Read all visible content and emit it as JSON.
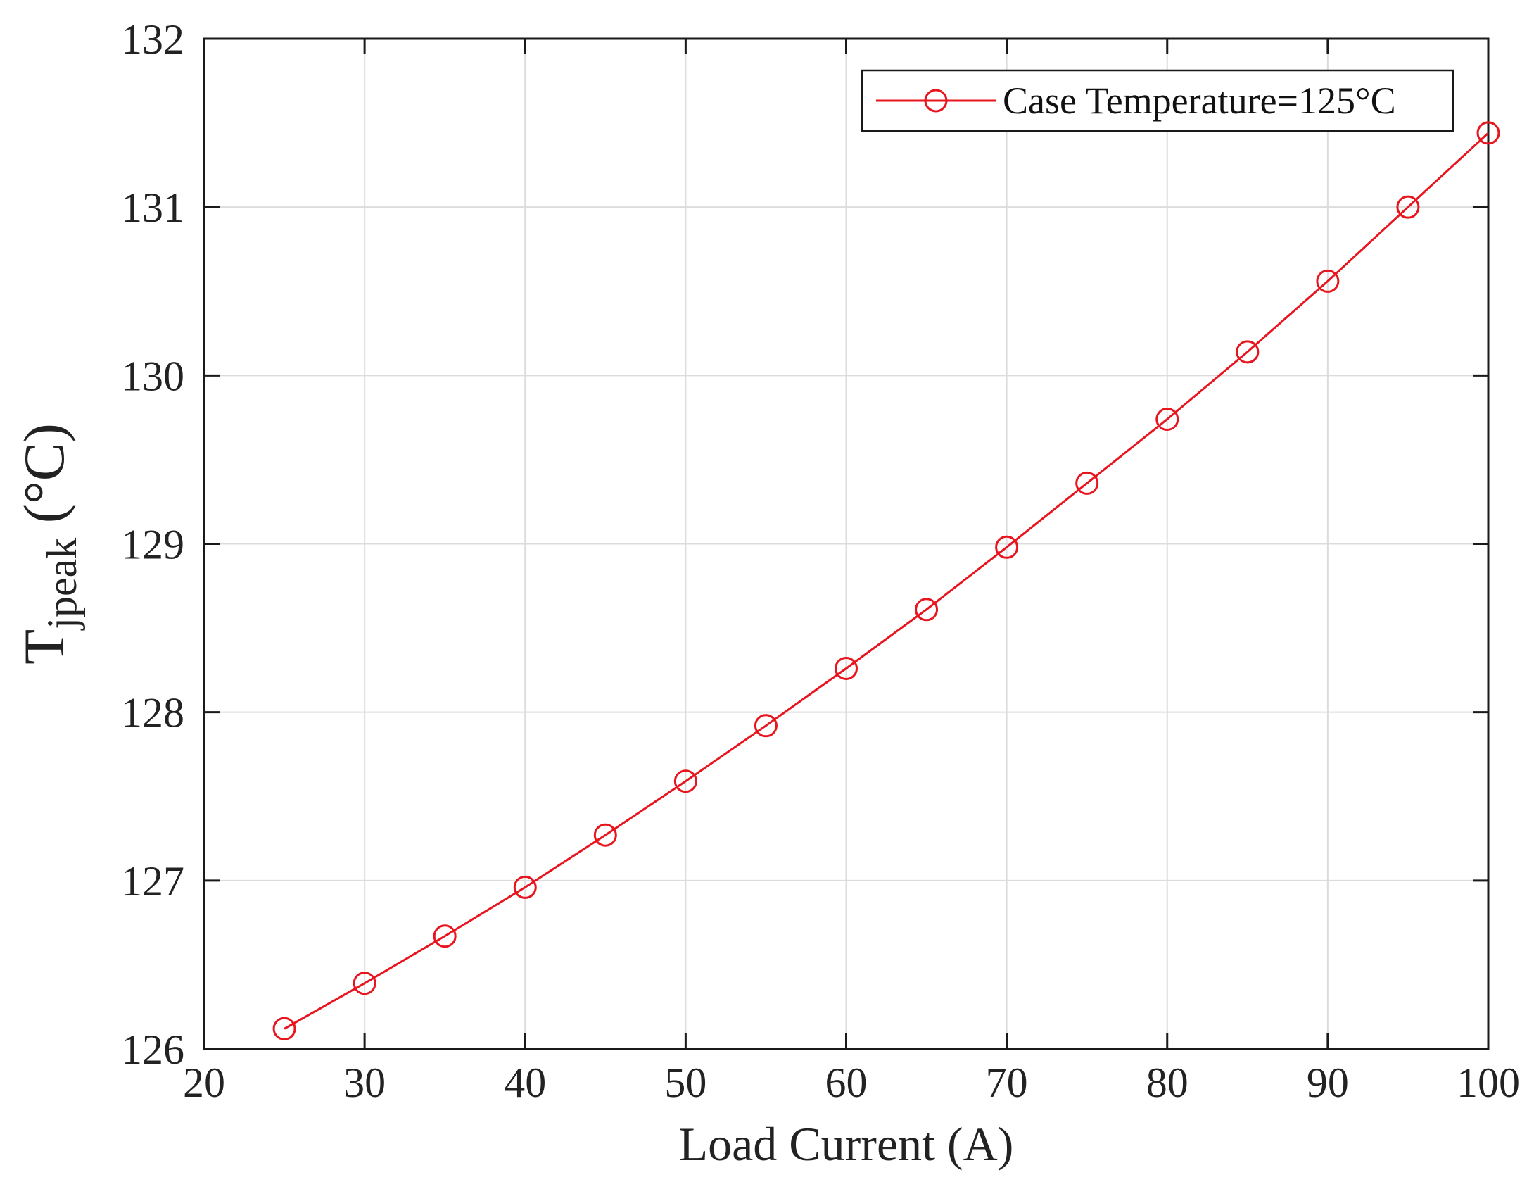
{
  "chart_data": {
    "type": "line",
    "xlabel": "Load Current (A)",
    "ylabel": {
      "main": "T",
      "subscript": "jpeak",
      "unit": " (°C)"
    },
    "xlim": [
      20,
      100
    ],
    "ylim": [
      126,
      132
    ],
    "xticks": [
      20,
      30,
      40,
      50,
      60,
      70,
      80,
      90,
      100
    ],
    "yticks": [
      126,
      127,
      128,
      129,
      130,
      131,
      132
    ],
    "grid": true,
    "legend_position": "top-right",
    "series": [
      {
        "name": "Case Temperature=125°C",
        "color": "#e8141e",
        "marker": "circle",
        "x": [
          25,
          30,
          35,
          40,
          45,
          50,
          55,
          60,
          65,
          70,
          75,
          80,
          85,
          90,
          95,
          100
        ],
        "y": [
          126.12,
          126.39,
          126.67,
          126.96,
          127.27,
          127.59,
          127.92,
          128.26,
          128.61,
          128.98,
          129.36,
          129.74,
          130.14,
          130.56,
          131.0,
          131.44
        ]
      }
    ]
  }
}
